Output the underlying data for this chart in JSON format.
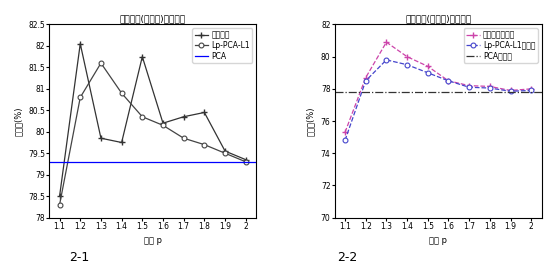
{
  "x": [
    1.1,
    1.2,
    1.3,
    1.4,
    1.5,
    1.6,
    1.7,
    1.8,
    1.9,
    2.0
  ],
  "chart1": {
    "title": "三种方法(去噪前)性能比较",
    "ylabel": "识别率(%)",
    "xlabel": "参数 p",
    "ylim": [
      78,
      82.5
    ],
    "yticks": [
      78,
      78.5,
      79,
      79.5,
      80,
      80.5,
      81,
      81.5,
      82,
      82.5
    ],
    "ytick_labels": [
      "78",
      "78.5",
      "79",
      "79.5",
      "80",
      "80.5",
      "81",
      "81.5",
      "82",
      "82.5"
    ],
    "series1_label": "本文方法",
    "series1_values": [
      78.5,
      82.05,
      79.85,
      79.75,
      81.75,
      80.2,
      80.35,
      80.45,
      79.55,
      79.35
    ],
    "series2_label": "Lp-PCA-L1",
    "series2_values": [
      78.3,
      80.8,
      81.6,
      80.9,
      80.35,
      80.15,
      79.85,
      79.7,
      79.5,
      79.3
    ],
    "series3_label": "PCA",
    "series3_value": 79.3,
    "caption": "2-1"
  },
  "chart2": {
    "title": "三种方法(加噪后)性能比较",
    "ylabel": "识别率(%)",
    "xlabel": "参数 p",
    "ylim": [
      70,
      82
    ],
    "yticks": [
      70,
      72,
      74,
      76,
      78,
      80,
      82
    ],
    "ytick_labels": [
      "70",
      "72",
      "74",
      "76",
      "78",
      "80",
      "82"
    ],
    "series1_label": "本文方法加噪后",
    "series1_values": [
      75.3,
      78.7,
      80.9,
      80.0,
      79.4,
      78.5,
      78.2,
      78.15,
      77.9,
      78.0
    ],
    "series2_label": "Lp-PCA-L1加噪后",
    "series2_values": [
      74.8,
      78.5,
      79.8,
      79.5,
      79.0,
      78.5,
      78.1,
      78.05,
      77.85,
      77.9
    ],
    "series3_label": "PCA加噪后",
    "series3_value": 77.8,
    "caption": "2-2"
  },
  "fig_background": "#ffffff",
  "fontsize_title": 6.5,
  "fontsize_axis": 6,
  "fontsize_tick": 5.5,
  "fontsize_legend": 5.5,
  "fontsize_caption": 9
}
